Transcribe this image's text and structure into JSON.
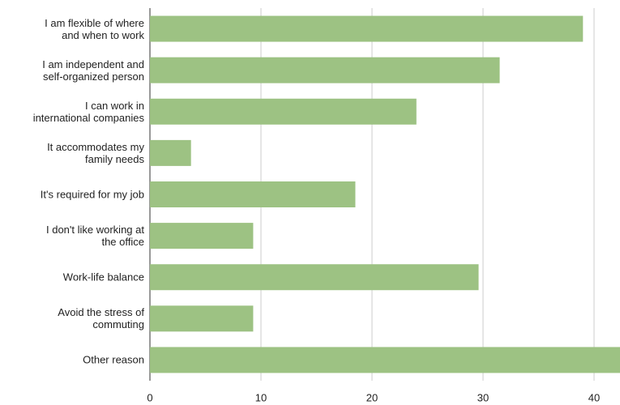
{
  "chart_data": {
    "type": "bar",
    "orientation": "horizontal",
    "categories": [
      "I am flexible of where\nand when to work",
      "I am independent and\nself-organized person",
      "I can work in\ninternational companies",
      "It accommodates my\nfamily needs",
      "It's required for my job",
      "I don't like working at\nthe office",
      "Work-life balance",
      "Avoid the stress of\ncommuting",
      "Other reason"
    ],
    "values": [
      39,
      31.5,
      24,
      3.7,
      18.5,
      9.3,
      29.6,
      9.3,
      43
    ],
    "color": "#9dc283",
    "xlim": [
      0,
      42.3
    ],
    "xticks": [
      0,
      10,
      20,
      30,
      40
    ],
    "grid": true
  }
}
